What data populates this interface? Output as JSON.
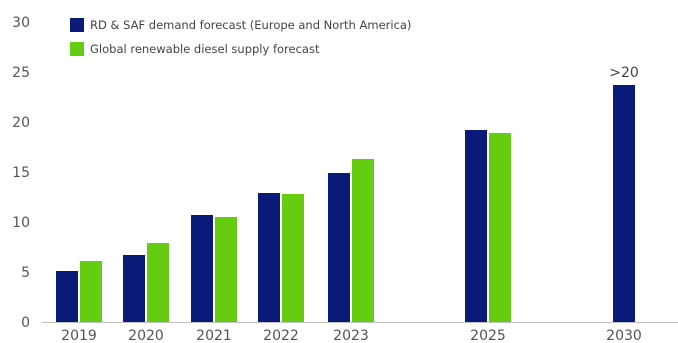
{
  "chart_data": {
    "type": "bar",
    "title": "",
    "xlabel": "",
    "ylabel": "",
    "categories": [
      "2019",
      "2020",
      "2021",
      "2022",
      "2023",
      "2025",
      "2030"
    ],
    "ylim": [
      0,
      30
    ],
    "yticks": [
      0,
      5,
      10,
      15,
      20,
      25,
      30
    ],
    "grid": false,
    "legend_position": "top-left",
    "series": [
      {
        "name": "RD & SAF demand forecast (Europe and North America)",
        "color": "#0a1a78",
        "values": [
          5.1,
          6.7,
          10.7,
          12.9,
          14.9,
          19.2,
          23.7
        ]
      },
      {
        "name": "Global renewable diesel supply forecast",
        "color": "#66cc11",
        "values": [
          6.1,
          7.9,
          10.5,
          12.8,
          16.3,
          18.9,
          null
        ]
      }
    ],
    "annotations": [
      {
        "category": "2030",
        "series": 0,
        "text": ">20"
      }
    ]
  }
}
